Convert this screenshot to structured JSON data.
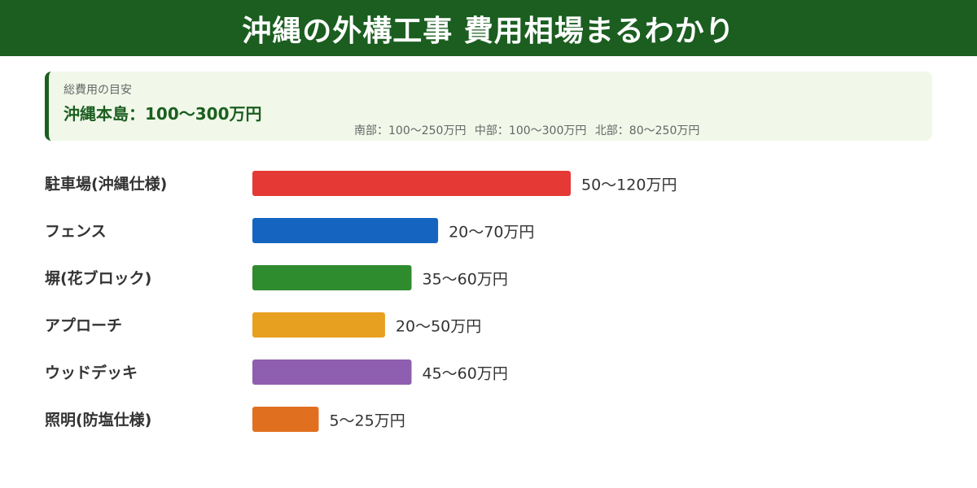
{
  "header": {
    "title": "沖縄の外構工事 費用相場まるわかり"
  },
  "summary": {
    "label": "総費用の目安",
    "main": "沖縄本島：100〜300万円",
    "regions": [
      "南部：100〜250万円",
      "中部：100〜300万円",
      "北部：80〜250万円"
    ]
  },
  "colors": {
    "header_bg": "#1b5e20",
    "summary_bg": "#f1f8e9"
  },
  "chart_data": {
    "type": "bar",
    "orientation": "horizontal",
    "unit": "万円",
    "categories": [
      "駐車場(沖縄仕様)",
      "フェンス",
      "塀(花ブロック)",
      "アプローチ",
      "ウッドデッキ",
      "照明(防塩仕様)"
    ],
    "values": [
      120,
      70,
      60,
      50,
      60,
      25
    ],
    "ranges": [
      [
        50,
        120
      ],
      [
        20,
        70
      ],
      [
        35,
        60
      ],
      [
        20,
        50
      ],
      [
        45,
        60
      ],
      [
        5,
        25
      ]
    ],
    "value_labels": [
      "50〜120万円",
      "20〜70万円",
      "35〜60万円",
      "20〜50万円",
      "45〜60万円",
      "5〜25万円"
    ],
    "colors": [
      "#e53935",
      "#1565c0",
      "#2e8b2e",
      "#e8a020",
      "#8e5fb0",
      "#e07020"
    ],
    "xlim": [
      0,
      120
    ],
    "grid": false,
    "legend": "none"
  }
}
